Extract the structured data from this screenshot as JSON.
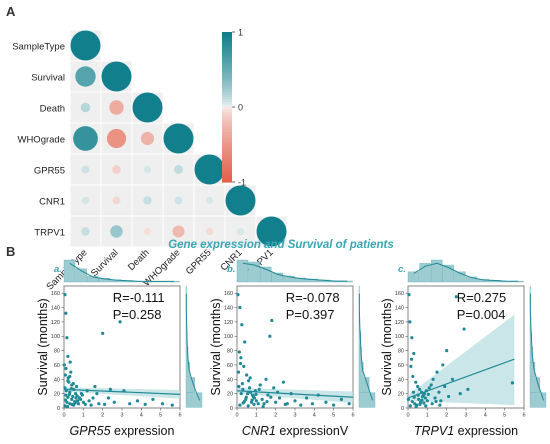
{
  "panel_labels": {
    "a": "A",
    "b": "B"
  },
  "colors": {
    "teal": "#127f8c",
    "teal_mid": "#4aa3ad",
    "teal_light": "#a9cfd4",
    "red": "#e3624d",
    "red_mid": "#ee9a88",
    "red_light": "#f6d0c8",
    "cell_bg": "#efefef",
    "scatter": "#1f8a96",
    "hist_fill": "#9ccbd0"
  },
  "chart_data": [
    {
      "type": "heatmap",
      "style": "lower-triangular correlogram (circles)",
      "variables": [
        "SampleType",
        "Survival",
        "Death",
        "WHOgrade",
        "GPR55",
        "CNR1",
        "TRPV1"
      ],
      "matrix": [
        [
          1.0,
          0.6,
          0.15,
          0.78,
          0.08,
          0.06,
          0.1
        ],
        [
          0.6,
          1.0,
          -0.35,
          -0.55,
          -0.11,
          -0.08,
          0.27
        ],
        [
          0.15,
          -0.35,
          1.0,
          -0.3,
          0.05,
          0.1,
          -0.05
        ],
        [
          0.78,
          -0.55,
          -0.3,
          1.0,
          0.12,
          0.08,
          -0.25
        ],
        [
          0.08,
          -0.11,
          0.05,
          0.12,
          1.0,
          0.05,
          -0.06
        ],
        [
          0.06,
          -0.08,
          0.1,
          0.08,
          0.05,
          1.0,
          0.05
        ],
        [
          0.1,
          0.27,
          -0.05,
          -0.25,
          -0.06,
          0.05,
          1.0
        ]
      ],
      "colorbar": {
        "min": -1,
        "max": 1,
        "ticks": [
          "1",
          "0",
          "-1"
        ]
      }
    },
    {
      "type": "scatter",
      "panel": "a.",
      "gene": "GPR55",
      "xlabel_suffix": " expression",
      "ylabel": "Survival (months)",
      "annotation": [
        "R=-0.111",
        "P=0.258"
      ],
      "xlim": [
        0,
        6
      ],
      "ylim": [
        0,
        170
      ],
      "xticks": [
        0,
        1,
        2,
        3,
        4,
        5,
        6
      ],
      "yticks": [
        0,
        20,
        40,
        60,
        80,
        100,
        120,
        140,
        160
      ],
      "fit": {
        "x0": 0,
        "y0": 26,
        "x1": 6,
        "y1": 19,
        "ci": 6
      },
      "points": [
        [
          0.05,
          158
        ],
        [
          0.1,
          132
        ],
        [
          0.15,
          98
        ],
        [
          0.2,
          72
        ],
        [
          0.1,
          55
        ],
        [
          0.3,
          44
        ],
        [
          0.2,
          38
        ],
        [
          0.4,
          32
        ],
        [
          0.05,
          28
        ],
        [
          0.5,
          26
        ],
        [
          0.3,
          22
        ],
        [
          0.6,
          20
        ],
        [
          0.1,
          18
        ],
        [
          0.2,
          15
        ],
        [
          0.4,
          12
        ],
        [
          0.7,
          10
        ],
        [
          0.15,
          8
        ],
        [
          0.3,
          6
        ],
        [
          0.5,
          4
        ],
        [
          0.05,
          3
        ],
        [
          0.8,
          14
        ],
        [
          0.9,
          20
        ],
        [
          1.0,
          8
        ],
        [
          1.2,
          24
        ],
        [
          1.1,
          5
        ],
        [
          0.25,
          36
        ],
        [
          0.35,
          50
        ],
        [
          0.45,
          16
        ],
        [
          0.55,
          9
        ],
        [
          0.65,
          30
        ],
        [
          0.75,
          6
        ],
        [
          0.85,
          12
        ],
        [
          0.95,
          18
        ],
        [
          1.3,
          10
        ],
        [
          1.4,
          4
        ],
        [
          1.6,
          30
        ],
        [
          1.8,
          6
        ],
        [
          2.0,
          104
        ],
        [
          2.3,
          14
        ],
        [
          2.6,
          8
        ],
        [
          2.9,
          120
        ],
        [
          3.1,
          24
        ],
        [
          3.4,
          6
        ],
        [
          3.8,
          10
        ],
        [
          4.2,
          5
        ],
        [
          4.6,
          12
        ],
        [
          5.1,
          6
        ],
        [
          5.6,
          4
        ],
        [
          0.12,
          24
        ],
        [
          0.22,
          42
        ],
        [
          0.42,
          5
        ],
        [
          0.62,
          14
        ],
        [
          0.28,
          19
        ],
        [
          0.08,
          11
        ],
        [
          0.18,
          2
        ],
        [
          0.38,
          27
        ],
        [
          0.48,
          34
        ],
        [
          0.58,
          7
        ],
        [
          0.68,
          17
        ],
        [
          1.5,
          14
        ],
        [
          1.7,
          20
        ],
        [
          2.1,
          5
        ],
        [
          2.4,
          26
        ],
        [
          0.02,
          60
        ],
        [
          0.07,
          46
        ],
        [
          0.32,
          64
        ]
      ],
      "hist_x": [
        30,
        18,
        8,
        5,
        3,
        2,
        1,
        1,
        1,
        1
      ],
      "hist_y": [
        40,
        22,
        9,
        5,
        3,
        2,
        1,
        1
      ]
    },
    {
      "type": "scatter",
      "panel": "b.",
      "gene": "CNR1",
      "xlabel_suffix": " expressionV",
      "ylabel": "Survival (months)",
      "annotation": [
        "R=-0.078",
        "P=0.397"
      ],
      "xlim": [
        0,
        6
      ],
      "ylim": [
        0,
        170
      ],
      "xticks": [
        0,
        1,
        2,
        3,
        4,
        5,
        6
      ],
      "yticks": [
        0,
        20,
        40,
        60,
        80,
        100,
        120,
        140,
        160
      ],
      "fit": {
        "x0": 0,
        "y0": 24,
        "x1": 6,
        "y1": 15,
        "ci": 8
      },
      "points": [
        [
          0.05,
          158
        ],
        [
          0.15,
          140
        ],
        [
          0.25,
          116
        ],
        [
          0.4,
          92
        ],
        [
          0.2,
          70
        ],
        [
          0.35,
          58
        ],
        [
          0.5,
          46
        ],
        [
          0.6,
          38
        ],
        [
          0.1,
          30
        ],
        [
          0.3,
          26
        ],
        [
          0.7,
          22
        ],
        [
          0.8,
          18
        ],
        [
          0.9,
          14
        ],
        [
          1.0,
          10
        ],
        [
          1.1,
          6
        ],
        [
          0.15,
          4
        ],
        [
          0.45,
          12
        ],
        [
          0.55,
          20
        ],
        [
          0.65,
          28
        ],
        [
          0.75,
          8
        ],
        [
          0.85,
          16
        ],
        [
          0.95,
          24
        ],
        [
          1.2,
          32
        ],
        [
          1.3,
          12
        ],
        [
          1.4,
          6
        ],
        [
          1.5,
          40
        ],
        [
          1.6,
          18
        ],
        [
          1.7,
          100
        ],
        [
          1.8,
          122
        ],
        [
          1.9,
          28
        ],
        [
          2.0,
          8
        ],
        [
          2.2,
          14
        ],
        [
          2.4,
          36
        ],
        [
          2.6,
          6
        ],
        [
          2.8,
          20
        ],
        [
          3.0,
          10
        ],
        [
          3.3,
          4
        ],
        [
          3.6,
          14
        ],
        [
          3.9,
          6
        ],
        [
          4.2,
          18
        ],
        [
          4.6,
          8
        ],
        [
          5.0,
          4
        ],
        [
          5.4,
          12
        ],
        [
          5.8,
          6
        ],
        [
          0.08,
          50
        ],
        [
          0.18,
          62
        ],
        [
          0.28,
          34
        ],
        [
          0.38,
          9
        ],
        [
          0.48,
          15
        ],
        [
          0.58,
          3
        ],
        [
          0.68,
          42
        ],
        [
          0.78,
          11
        ],
        [
          0.88,
          5
        ],
        [
          0.98,
          19
        ],
        [
          1.15,
          26
        ],
        [
          1.35,
          2
        ],
        [
          1.55,
          9
        ],
        [
          1.75,
          15
        ],
        [
          2.1,
          22
        ],
        [
          2.5,
          5
        ],
        [
          0.12,
          78
        ],
        [
          0.22,
          20
        ],
        [
          0.32,
          7
        ]
      ],
      "hist_x": [
        22,
        20,
        15,
        9,
        6,
        4,
        3,
        2,
        1,
        1
      ],
      "hist_y": [
        38,
        24,
        10,
        6,
        4,
        2,
        1,
        1
      ]
    },
    {
      "type": "scatter",
      "panel": "c.",
      "gene": "TRPV1",
      "xlabel_suffix": " expression",
      "ylabel": "Survival (months)",
      "annotation": [
        "R=0.275",
        "P=0.004"
      ],
      "xlim": [
        0,
        6
      ],
      "ylim": [
        0,
        170
      ],
      "xticks": [
        0,
        1,
        2,
        3,
        4,
        5,
        6
      ],
      "yticks": [
        0,
        20,
        40,
        60,
        80,
        100,
        120,
        140,
        160
      ],
      "fit": {
        "x0": 0,
        "y0": 14,
        "x1": 5.5,
        "y1": 68,
        "ci_lo": [
          10,
          4
        ],
        "ci_hi": [
          18,
          130
        ]
      },
      "points": [
        [
          0.05,
          158
        ],
        [
          0.1,
          120
        ],
        [
          0.2,
          98
        ],
        [
          0.3,
          76
        ],
        [
          0.15,
          58
        ],
        [
          0.25,
          44
        ],
        [
          0.4,
          36
        ],
        [
          0.5,
          30
        ],
        [
          0.6,
          26
        ],
        [
          0.7,
          22
        ],
        [
          0.8,
          18
        ],
        [
          0.9,
          14
        ],
        [
          1.0,
          10
        ],
        [
          0.35,
          6
        ],
        [
          0.45,
          4
        ],
        [
          0.55,
          12
        ],
        [
          0.65,
          8
        ],
        [
          0.75,
          16
        ],
        [
          0.85,
          20
        ],
        [
          0.95,
          24
        ],
        [
          1.1,
          28
        ],
        [
          1.2,
          32
        ],
        [
          1.3,
          40
        ],
        [
          1.4,
          14
        ],
        [
          1.5,
          50
        ],
        [
          1.6,
          22
        ],
        [
          1.7,
          10
        ],
        [
          1.8,
          60
        ],
        [
          1.9,
          30
        ],
        [
          2.0,
          80
        ],
        [
          2.1,
          16
        ],
        [
          2.3,
          40
        ],
        [
          2.5,
          155
        ],
        [
          2.7,
          20
        ],
        [
          2.9,
          110
        ],
        [
          3.1,
          26
        ],
        [
          0.02,
          12
        ],
        [
          0.12,
          3
        ],
        [
          0.22,
          9
        ],
        [
          0.32,
          15
        ],
        [
          0.42,
          2
        ],
        [
          0.52,
          18
        ],
        [
          0.62,
          5
        ],
        [
          0.72,
          11
        ],
        [
          0.82,
          7
        ],
        [
          0.92,
          3
        ],
        [
          1.05,
          19
        ],
        [
          1.25,
          6
        ],
        [
          1.45,
          9
        ],
        [
          1.65,
          4
        ],
        [
          5.4,
          35
        ],
        [
          0.18,
          68
        ],
        [
          0.28,
          22
        ]
      ],
      "hist_x": [
        12,
        22,
        26,
        20,
        12,
        6,
        3,
        2,
        1,
        1
      ],
      "hist_y": [
        36,
        22,
        11,
        6,
        4,
        2,
        1,
        1
      ]
    }
  ],
  "section_b_title": "Gene expression and Survival of patients"
}
